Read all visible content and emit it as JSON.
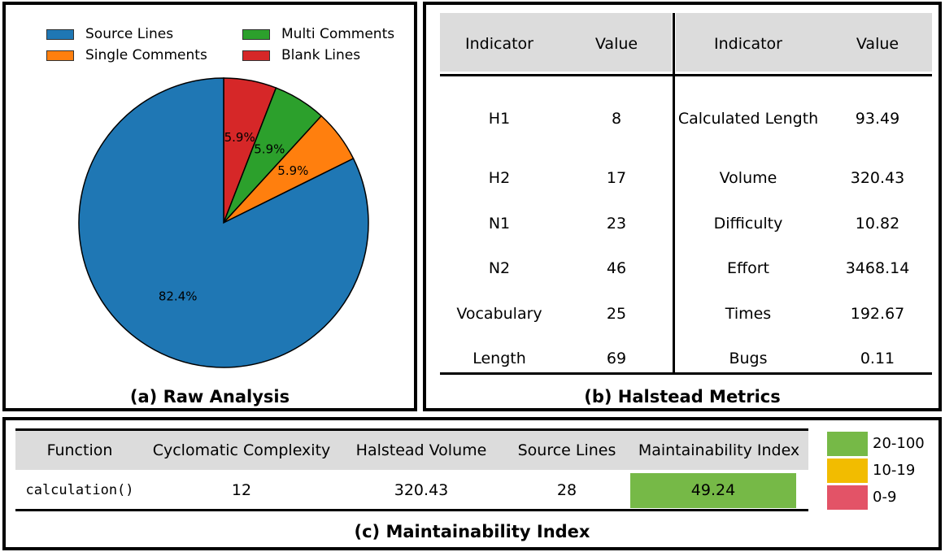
{
  "panel_a": {
    "caption": "(a) Raw Analysis",
    "chart_data": {
      "type": "pie",
      "title": "(a) Raw Analysis",
      "labels": [
        "Source Lines",
        "Single Comments",
        "Multi Comments",
        "Blank Lines"
      ],
      "values": [
        82.4,
        5.9,
        5.9,
        5.9
      ],
      "value_labels": [
        "82.4%",
        "5.9%",
        "5.9%",
        "5.9%"
      ],
      "colors": [
        "#1f77b4",
        "#ff7f0e",
        "#2ca02c",
        "#d62728"
      ],
      "start_angle_deg": 90,
      "direction": "clockwise-from-top-for-blank",
      "legend": {
        "placement": "top",
        "entries": [
          {
            "label": "Source Lines",
            "color": "#1f77b4"
          },
          {
            "label": "Multi Comments",
            "color": "#2ca02c"
          },
          {
            "label": "Single Comments",
            "color": "#ff7f0e"
          },
          {
            "label": "Blank Lines",
            "color": "#d62728"
          }
        ]
      }
    }
  },
  "panel_b": {
    "caption": "(b) Halstead Metrics",
    "headers": [
      "Indicator",
      "Value",
      "Indicator",
      "Value"
    ],
    "left_rows": [
      {
        "indicator": "H1",
        "value": "8"
      },
      {
        "indicator": "H2",
        "value": "17"
      },
      {
        "indicator": "N1",
        "value": "23"
      },
      {
        "indicator": "N2",
        "value": "46"
      },
      {
        "indicator": "Vocabulary",
        "value": "25"
      },
      {
        "indicator": "Length",
        "value": "69"
      }
    ],
    "right_rows": [
      {
        "indicator": "Calculated Length",
        "value": "93.49"
      },
      {
        "indicator": "Volume",
        "value": "320.43"
      },
      {
        "indicator": "Difficulty",
        "value": "10.82"
      },
      {
        "indicator": "Effort",
        "value": "3468.14"
      },
      {
        "indicator": "Times",
        "value": "192.67"
      },
      {
        "indicator": "Bugs",
        "value": "0.11"
      }
    ]
  },
  "panel_c": {
    "caption": "(c) Maintainability Index",
    "headers": [
      "Function",
      "Cyclomatic Complexity",
      "Halstead Volume",
      "Source Lines",
      "Maintainability Index"
    ],
    "row": {
      "function": "calculation()",
      "cyclomatic_complexity": "12",
      "halstead_volume": "320.43",
      "source_lines": "28",
      "maintainability_index": "49.24",
      "mi_color": "#76b947"
    },
    "legend": [
      {
        "label": "20-100",
        "color": "#76b947"
      },
      {
        "label": "10-19",
        "color": "#f2bc00"
      },
      {
        "label": "0-9",
        "color": "#e35367"
      }
    ]
  }
}
